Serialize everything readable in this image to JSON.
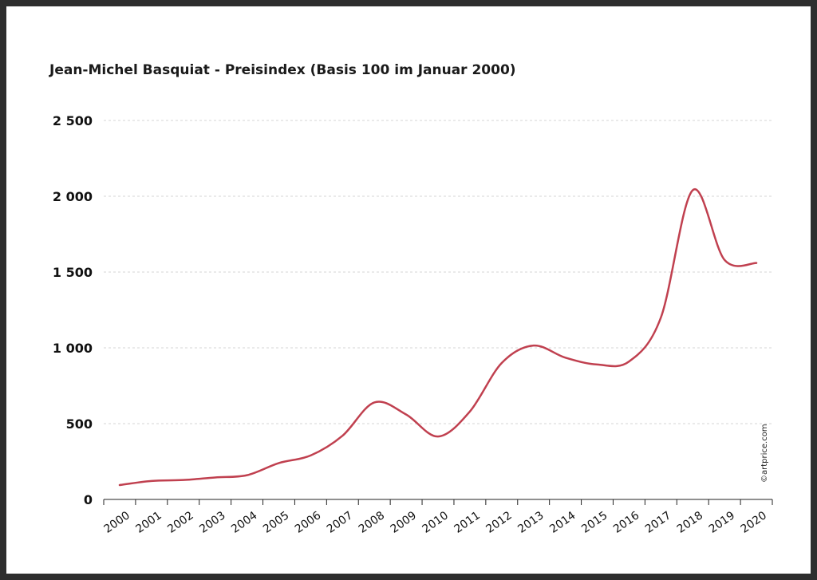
{
  "chart_data": {
    "type": "line",
    "title": "Jean-Michel Basquiat - Preisindex (Basis 100 im Januar 2000)",
    "xlabel": "",
    "ylabel": "",
    "x_ticks": [
      "2000",
      "2001",
      "2002",
      "2003",
      "2004",
      "2005",
      "2006",
      "2007",
      "2008",
      "2009",
      "2010",
      "2011",
      "2012",
      "2013",
      "2014",
      "2015",
      "2016",
      "2017",
      "2018",
      "2019",
      "2020"
    ],
    "y_ticks": [
      {
        "value": 0,
        "label": "0"
      },
      {
        "value": 500,
        "label": "500"
      },
      {
        "value": 1000,
        "label": "1 000"
      },
      {
        "value": 1500,
        "label": "1 500"
      },
      {
        "value": 2000,
        "label": "2 000"
      },
      {
        "value": 2500,
        "label": "2 500"
      }
    ],
    "ylim": [
      0,
      2500
    ],
    "xlim": [
      2000,
      2021
    ],
    "grid": "horizontal-dashed",
    "series": [
      {
        "color": "#c0404f",
        "points": [
          [
            2000.5,
            95
          ],
          [
            2001.5,
            122
          ],
          [
            2002.5,
            128
          ],
          [
            2003.5,
            145
          ],
          [
            2004.5,
            160
          ],
          [
            2005.5,
            240
          ],
          [
            2006.5,
            290
          ],
          [
            2007.5,
            420
          ],
          [
            2008.5,
            640
          ],
          [
            2009.5,
            560
          ],
          [
            2010.5,
            415
          ],
          [
            2011.5,
            580
          ],
          [
            2012.5,
            900
          ],
          [
            2013.5,
            1015
          ],
          [
            2014.5,
            935
          ],
          [
            2015.5,
            890
          ],
          [
            2016.5,
            910
          ],
          [
            2017.5,
            1200
          ],
          [
            2018.5,
            2040
          ],
          [
            2019.5,
            1580
          ],
          [
            2020.5,
            1560
          ]
        ]
      }
    ],
    "watermark": "©artprice.com"
  }
}
